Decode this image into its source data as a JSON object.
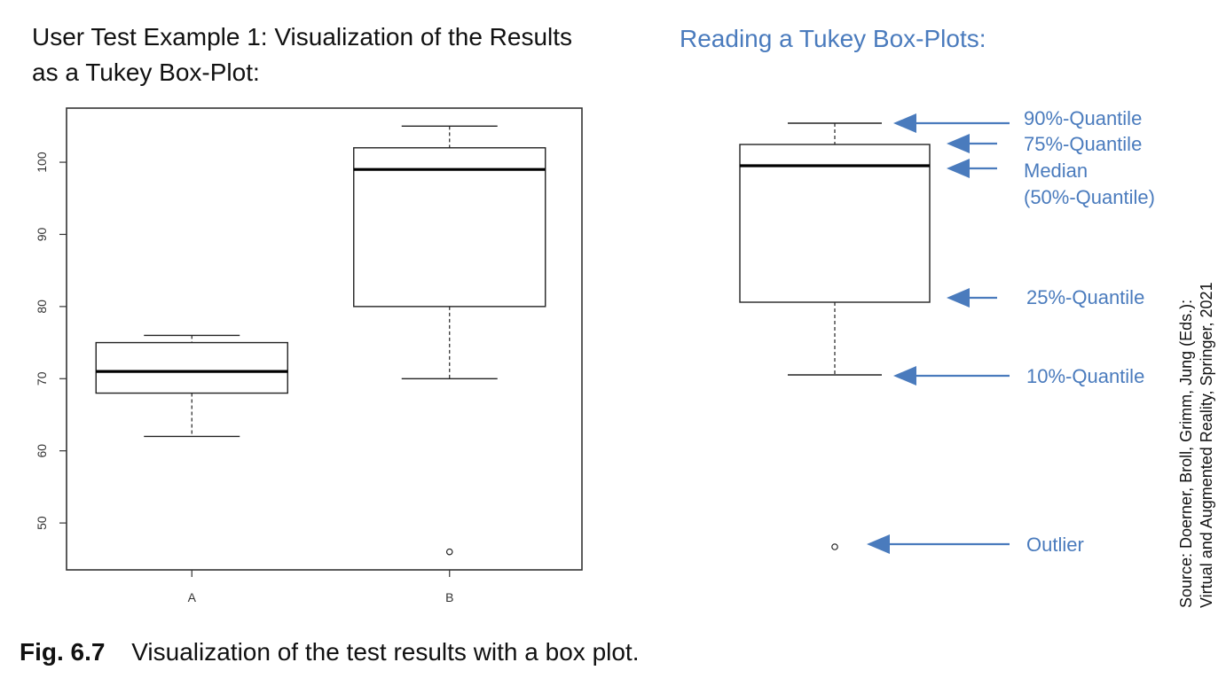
{
  "left_title": "User Test Example 1: Visualization of the Results as a Tukey Box-Plot:",
  "right_title": "Reading a Tukey Box-Plots:",
  "caption": {
    "label": "Fig. 6.7",
    "text": "Visualization of the test results with a box plot."
  },
  "source_note": {
    "line1": "Source: Doerner, Broll, Grimm, Jung (Eds.):",
    "line2": "Virtual and Augmented Reality, Springer, 2021"
  },
  "colors": {
    "accent": "#4a7bbd",
    "axis": "#333333",
    "box_stroke": "#222222",
    "median": "#000000"
  },
  "chart_data": {
    "type": "boxplot",
    "categories": [
      "A",
      "B"
    ],
    "yticks": [
      50,
      60,
      70,
      80,
      90,
      100
    ],
    "ylim": [
      43.5,
      107.5
    ],
    "grid": false,
    "series": [
      {
        "category": "A",
        "lower_whisker": 62,
        "q1": 68,
        "median": 71,
        "q3": 75,
        "upper_whisker": 76,
        "outliers": []
      },
      {
        "category": "B",
        "lower_whisker": 70,
        "q1": 80,
        "median": 99,
        "q3": 102,
        "upper_whisker": 105,
        "outliers": [
          46
        ]
      }
    ]
  },
  "legend_box": {
    "labels": [
      {
        "key": "q90",
        "text": "90%-Quantile"
      },
      {
        "key": "q75",
        "text": "75%-Quantile"
      },
      {
        "key": "median",
        "text": "Median"
      },
      {
        "key": "median_note",
        "text": "(50%-Quantile)"
      },
      {
        "key": "q25",
        "text": "25%-Quantile"
      },
      {
        "key": "q10",
        "text": "10%-Quantile"
      },
      {
        "key": "outlier",
        "text": "Outlier"
      }
    ]
  }
}
